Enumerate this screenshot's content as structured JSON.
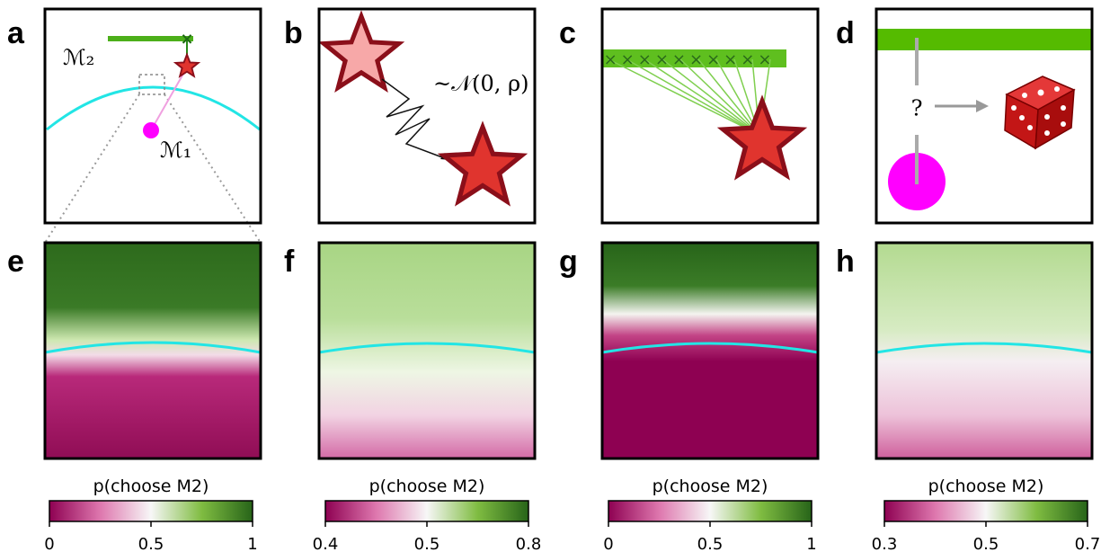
{
  "panel_labels": [
    "a",
    "b",
    "c",
    "d",
    "e",
    "f",
    "g",
    "h"
  ],
  "panel_a": {
    "m2": "ℳ₂",
    "m1": "ℳ₁"
  },
  "panel_b": {
    "noise": "~𝒩(0, ρ)"
  },
  "panel_d": {
    "question": "?"
  },
  "colorbars": [
    {
      "label": "p(choose M2)",
      "lim": [
        0,
        1
      ],
      "center": 0.5,
      "ticks": [
        0,
        0.5,
        1
      ]
    },
    {
      "label": "p(choose M2)",
      "lim": [
        0.4,
        0.8
      ],
      "center": 0.5,
      "ticks": [
        0.4,
        0.5,
        0.8
      ]
    },
    {
      "label": "p(choose M2)",
      "lim": [
        0,
        1
      ],
      "center": 0.5,
      "ticks": [
        0,
        0.5,
        1
      ]
    },
    {
      "label": "p(choose M2)",
      "lim": [
        0.3,
        0.7
      ],
      "center": 0.5,
      "ticks": [
        0.3,
        0.5,
        0.7
      ]
    }
  ]
}
